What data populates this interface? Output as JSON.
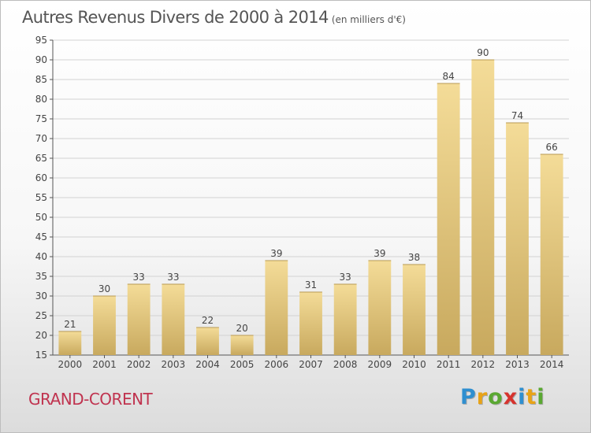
{
  "header": {
    "title": "Autres Revenus Divers de 2000 à 2014",
    "unit": "(en milliers d'€)"
  },
  "commune": "GRAND-CORENT",
  "logo": {
    "letters": [
      {
        "char": "P",
        "color": "#2f8fd0"
      },
      {
        "char": "r",
        "color": "#e8a317"
      },
      {
        "char": "o",
        "color": "#5aa832"
      },
      {
        "char": "x",
        "color": "#d6332e"
      },
      {
        "char": "i",
        "color": "#2f8fd0"
      },
      {
        "char": "t",
        "color": "#e8a317"
      },
      {
        "char": "i",
        "color": "#5aa832"
      }
    ]
  },
  "chart_data": {
    "type": "bar",
    "title": "Autres Revenus Divers de 2000 à 2014",
    "subtitle": "(en milliers d'€)",
    "categories": [
      "2000",
      "2001",
      "2002",
      "2003",
      "2004",
      "2005",
      "2006",
      "2007",
      "2008",
      "2009",
      "2010",
      "2011",
      "2012",
      "2013",
      "2014"
    ],
    "values": [
      21,
      30,
      33,
      33,
      22,
      20,
      39,
      31,
      33,
      39,
      38,
      84,
      90,
      74,
      66
    ],
    "ylim": [
      15,
      95
    ],
    "yticks": [
      15,
      20,
      25,
      30,
      35,
      40,
      45,
      50,
      55,
      60,
      65,
      70,
      75,
      80,
      85,
      90,
      95
    ],
    "grid": true,
    "xlabel": "",
    "ylabel": "",
    "colors": {
      "bar_light": "#f4dc98",
      "bar_dark": "#c8a95e",
      "grid": "#d2d2d2",
      "axis": "#555555",
      "text": "#444444"
    }
  }
}
